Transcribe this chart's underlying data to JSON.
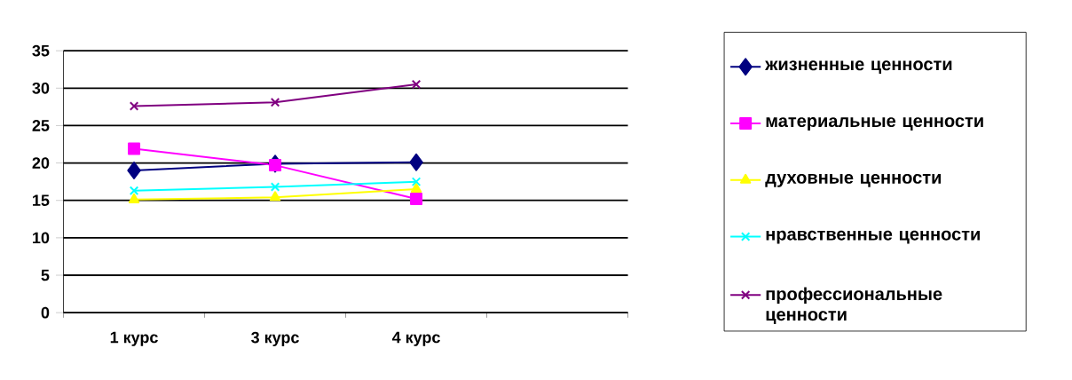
{
  "chart_data": {
    "type": "line",
    "categories": [
      "1 курс",
      "3 курс",
      "4 курс",
      null
    ],
    "ylim": [
      0,
      35
    ],
    "yticks": [
      0,
      5,
      10,
      15,
      20,
      25,
      30,
      35
    ],
    "grid": "y",
    "legend": "right",
    "line_style": "solid",
    "series": [
      {
        "name": "жизненные ценности",
        "color": "#000080",
        "marker": "diamond",
        "values": [
          19,
          19.9,
          20.1,
          null
        ]
      },
      {
        "name": "материальные ценности",
        "color": "#ff00ff",
        "marker": "square",
        "values": [
          21.9,
          19.7,
          15.2,
          null
        ]
      },
      {
        "name": "духовные ценности",
        "color": "#ffff00",
        "marker": "triangle",
        "values": [
          15.1,
          15.4,
          16.5,
          null
        ]
      },
      {
        "name": "нравственные ценности",
        "color": "#00ffff",
        "marker": "cross",
        "values": [
          16.3,
          16.8,
          17.5,
          null
        ]
      },
      {
        "name": "профессиональные ценности",
        "color": "#800080",
        "marker": "cross",
        "values": [
          27.6,
          28.1,
          30.5,
          null
        ]
      }
    ]
  }
}
